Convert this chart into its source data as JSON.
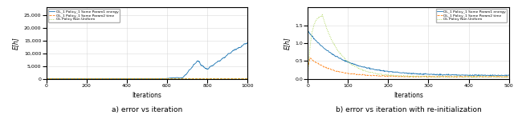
{
  "left_title": "a) error vs iteration",
  "right_title": "b) error vs iteration with re-initialization",
  "xlabel": "Iterations",
  "ylabel": "E[h]",
  "legend_labels_left": [
    "OL_1 Policy_1 Some Param1 energy",
    "OL_1 Policy_1 Some Param2 time",
    "OL Policy Non Uniform"
  ],
  "legend_labels_right": [
    "OL_1 Policy_1 Some Param1 energy",
    "OL_1 Policy_1 Some Param2 time",
    "OL Policy Non Uniform"
  ],
  "line_colors": [
    "#1f77b4",
    "#ff7f0e",
    "#9acd32"
  ],
  "line_styles_left": [
    "-",
    "--",
    ":"
  ],
  "line_styles_right": [
    "-",
    "--",
    ":"
  ],
  "left_xlim": [
    0,
    1000
  ],
  "left_ylim": [
    0,
    28000
  ],
  "right_xlim": [
    0,
    500
  ],
  "right_ylim": [
    0.0,
    2.0
  ],
  "left_yticks": [
    0,
    5000,
    10000,
    15000,
    20000,
    25000
  ],
  "right_yticks": [
    0.0,
    0.5,
    1.0,
    1.5
  ],
  "left_xticks": [
    0,
    200,
    400,
    600,
    800,
    1000
  ],
  "right_xticks": [
    0,
    100,
    200,
    300,
    400,
    500
  ],
  "grid_color": "#d0d0d0",
  "background_color": "#ffffff"
}
